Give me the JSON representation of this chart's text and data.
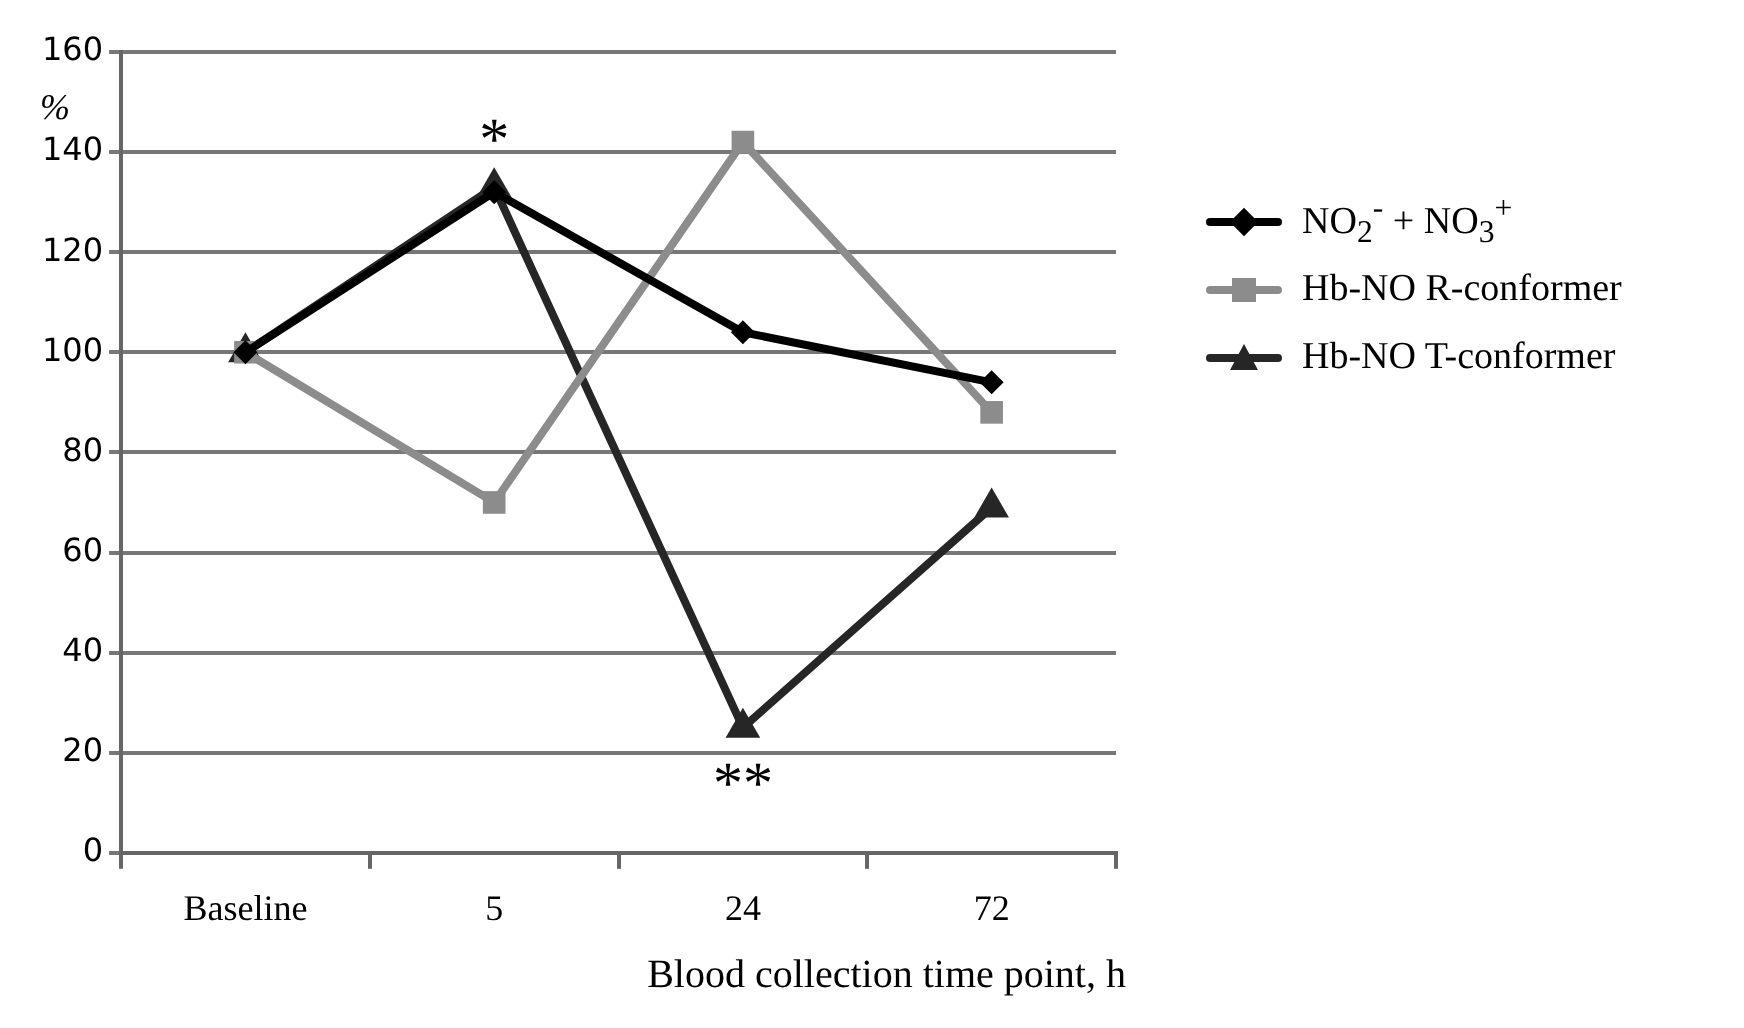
{
  "chart_data": {
    "type": "line",
    "ylabel": "%",
    "xlabel": "Blood collection time point, h",
    "categories": [
      "Baseline",
      "5",
      "24",
      "72"
    ],
    "series": [
      {
        "name": "NO$_{2}$$^{-}$ + NO$_{3}$$^{+}$",
        "color": "#000000",
        "marker": "diamond",
        "values": [
          100,
          132,
          104,
          94
        ]
      },
      {
        "name": "Hb-NO R-conformer",
        "color": "#8c8c8c",
        "marker": "square",
        "values": [
          100,
          70,
          142,
          88
        ]
      },
      {
        "name": "Hb-NO T-conformer",
        "color": "#262626",
        "marker": "triangle",
        "values": [
          100,
          133,
          25,
          69
        ]
      }
    ],
    "ylim": [
      0,
      160
    ],
    "yticks": [
      0,
      20,
      40,
      60,
      80,
      100,
      120,
      140,
      160
    ],
    "grid": "y",
    "legend": "right",
    "line_style": "solid",
    "annotations": [
      {
        "text": "*",
        "x": "5",
        "y": 133
      },
      {
        "text": "**",
        "x": "24",
        "y": 25
      }
    ]
  }
}
